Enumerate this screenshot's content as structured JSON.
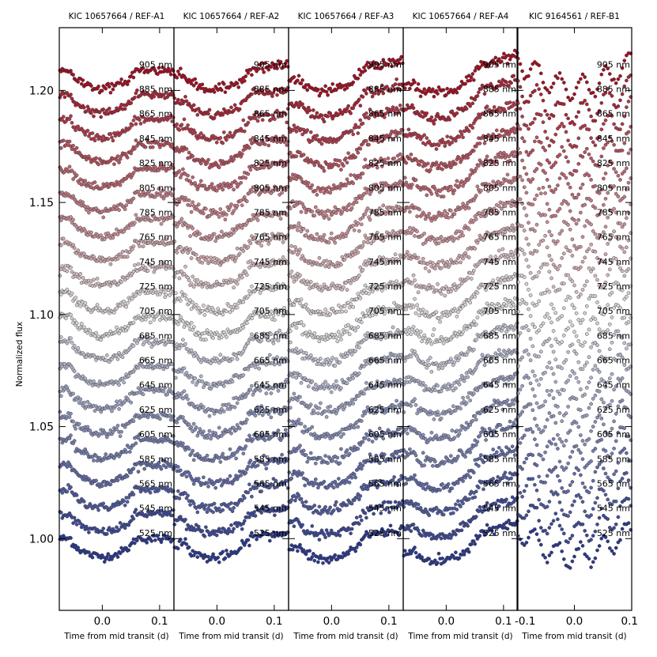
{
  "chart_data": {
    "type": "scatter",
    "ylabel": "Normalized flux",
    "xlabel": "Time from mid transit (d)",
    "ylim": [
      0.968,
      1.228
    ],
    "yticks": [
      "1.00",
      "1.05",
      "1.10",
      "1.15",
      "1.20"
    ],
    "ytick_values": [
      1.0,
      1.05,
      1.1,
      1.15,
      1.2
    ],
    "grid": false,
    "legend": "none",
    "wavelength_labels": [
      "525 nm",
      "545 nm",
      "565 nm",
      "585 nm",
      "605 nm",
      "625 nm",
      "645 nm",
      "665 nm",
      "685 nm",
      "705 nm",
      "725 nm",
      "745 nm",
      "765 nm",
      "785 nm",
      "805 nm",
      "825 nm",
      "845 nm",
      "865 nm",
      "885 nm",
      "905 nm"
    ],
    "offset_per_band": 0.011,
    "colors": {
      "blue_end": "#2b3990",
      "mid": "#dcdcdc",
      "red_end": "#a50f24",
      "marker_edge": "#333333"
    },
    "panels": [
      {
        "title": "KIC 10657664 / REF-A1",
        "xlim": [
          -0.075,
          0.125
        ],
        "xticks": [
          "0.0",
          "0.1"
        ],
        "xtick_values": [
          0.0,
          0.1
        ],
        "transit": {
          "t1": -0.055,
          "t4": 0.057,
          "depth": 0.008,
          "slope": 0.0,
          "noise": 0.0009
        }
      },
      {
        "title": "KIC 10657664 / REF-A2",
        "xlim": [
          -0.075,
          0.125
        ],
        "xticks": [
          "0.0",
          "0.1"
        ],
        "xtick_values": [
          0.0,
          0.1
        ],
        "transit": {
          "t1": -0.055,
          "t4": 0.057,
          "depth": 0.008,
          "slope": 0.025,
          "noise": 0.0011
        }
      },
      {
        "title": "KIC 10657664 / REF-A3",
        "xlim": [
          -0.075,
          0.125
        ],
        "xticks": [
          "0.0",
          "0.1"
        ],
        "xtick_values": [
          0.0,
          0.1
        ],
        "transit": {
          "t1": -0.055,
          "t4": 0.057,
          "depth": 0.008,
          "slope": 0.045,
          "noise": 0.0011
        }
      },
      {
        "title": "KIC 10657664 / REF-A4",
        "xlim": [
          -0.075,
          0.125
        ],
        "xticks": [
          "0.0",
          "0.1"
        ],
        "xtick_values": [
          0.0,
          0.1
        ],
        "transit": {
          "t1": -0.055,
          "t4": 0.057,
          "depth": 0.008,
          "slope": 0.07,
          "noise": 0.0011
        }
      },
      {
        "title": "KIC 9164561 / REF-B1",
        "xlim": [
          -0.1,
          0.1
        ],
        "xticks": [
          "-0.1",
          "0.0",
          "0.1"
        ],
        "xtick_values": [
          -0.1,
          0.0,
          0.1
        ],
        "transit": {
          "t1": -0.1,
          "t4": 0.1,
          "depth": 0.012,
          "slope": 0.0,
          "noise": 0.0008,
          "oscillating": true
        }
      }
    ]
  }
}
